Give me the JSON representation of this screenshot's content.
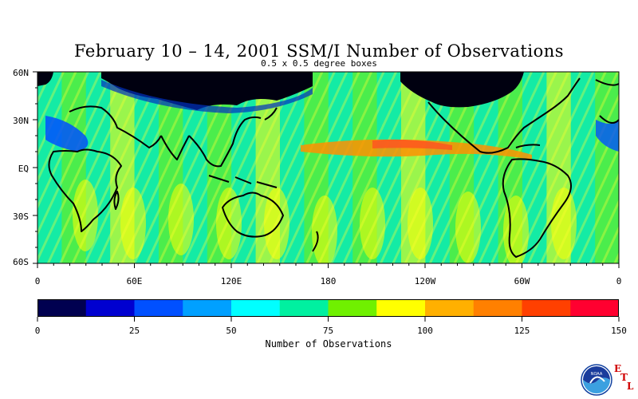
{
  "title": "February 10 – 14, 2001 SSM/I Number of Observations",
  "subtitle": "0.5 x 0.5 degree boxes",
  "lat_labels": [
    "60N",
    "30N",
    "EQ",
    "30S",
    "60S"
  ],
  "lon_labels": [
    "0",
    "60E",
    "120E",
    "180",
    "120W",
    "60W",
    "0"
  ],
  "colorbar": {
    "title": "Number of Observations",
    "tick_labels": [
      "0",
      "25",
      "50",
      "75",
      "100",
      "125",
      "150"
    ],
    "colors": [
      "#000050",
      "#0000d0",
      "#0050ff",
      "#00a0ff",
      "#00ffff",
      "#00f0a0",
      "#70f000",
      "#ffff00",
      "#ffb000",
      "#ff8000",
      "#ff4000",
      "#ff0030"
    ]
  },
  "logo": {
    "icon": "noaa-logo-icon",
    "text": "NOAA",
    "letters": [
      "E",
      "T",
      "L"
    ],
    "letter_color": "#d00000"
  }
}
